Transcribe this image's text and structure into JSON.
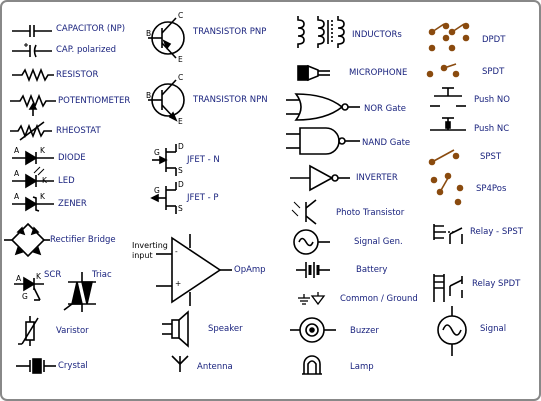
{
  "symbols": {
    "capacitor_np": "CAPACITOR (NP)",
    "cap_polarized": "CAP. polarized",
    "resistor": "RESISTOR",
    "potentiometer": "POTENTIOMETER",
    "rheostat": "RHEOSTAT",
    "diode": "DIODE",
    "led": "LED",
    "zener": "ZENER",
    "rectifier_bridge": "Rectifier Bridge",
    "scr": "SCR",
    "triac": "Triac",
    "varistor": "Varistor",
    "crystal": "Crystal",
    "transistor_pnp": "TRANSISTOR PNP",
    "transistor_npn": "TRANSISTOR NPN",
    "jfet_n": "JFET - N",
    "jfet_p": "JFET - P",
    "opamp": "OpAmp",
    "inverting_input": "Inverting input",
    "speaker": "Speaker",
    "antenna": "Antenna",
    "inductors": "INDUCTORs",
    "microphone": "MICROPHONE",
    "nor_gate": "NOR Gate",
    "nand_gate": "NAND Gate",
    "inverter": "INVERTER",
    "photo_transistor": "Photo Transistor",
    "signal_gen": "Signal Gen.",
    "battery": "Battery",
    "common_ground": "Common / Ground",
    "buzzer": "Buzzer",
    "lamp": "Lamp",
    "dpdt": "DPDT",
    "spdt": "SPDT",
    "push_no": "Push NO",
    "push_nc": "Push NC",
    "spst": "SPST",
    "sp4pos": "SP4Pos",
    "relay_spst": "Relay - SPST",
    "relay_spdt": "Relay SPDT",
    "signal": "Signal"
  },
  "pins": {
    "a": "A",
    "k": "K",
    "g": "G",
    "b": "B",
    "c": "C",
    "e": "E",
    "d": "D",
    "s": "S",
    "minus": "-",
    "plus": "+"
  },
  "colors": {
    "label": "#1a237e",
    "switch": "#8a4b0f",
    "line": "#000000"
  }
}
